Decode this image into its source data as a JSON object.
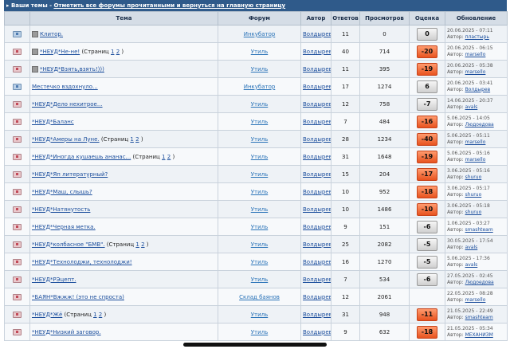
{
  "header": {
    "section": "Ваши темы",
    "sep": " - ",
    "mark_read_link": "Отметить все форумы прочитанными и вернуться на главную страницу"
  },
  "columns": {
    "topic": "Тема",
    "forum": "Форум",
    "author": "Автор",
    "replies": "Ответов",
    "views": "Просмотров",
    "rating": "Оценка",
    "updated": "Обновление"
  },
  "labels": {
    "by": "Автор:",
    "pages_prefix": "(Страниц",
    "pages_suffix": ")"
  },
  "rows": [
    {
      "icon": "read",
      "locked": true,
      "title": "Клитор.",
      "pages": [],
      "forum": "Инкубатор",
      "author": "Волдырев",
      "replies": "11",
      "views": "0",
      "rating": "0",
      "neg": false,
      "date": "20.06.2025 - 07:11",
      "last": "пластырь"
    },
    {
      "icon": "new",
      "locked": true,
      "title": "*НЕУД*Не-не!",
      "pages": [
        "1",
        "2"
      ],
      "forum": "Утиль",
      "author": "Волдырев",
      "replies": "40",
      "views": "714",
      "rating": "-20",
      "neg": true,
      "date": "20.06.2025 - 06:15",
      "last": "marsello"
    },
    {
      "icon": "new",
      "locked": true,
      "title": "*НЕУД*Взять,взять!)))",
      "pages": [],
      "forum": "Утиль",
      "author": "Волдырев",
      "replies": "11",
      "views": "395",
      "rating": "-19",
      "neg": true,
      "date": "20.06.2025 - 05:38",
      "last": "marsello"
    },
    {
      "icon": "read",
      "locked": false,
      "title": "Местечко вздохнуло...",
      "pages": [],
      "forum": "Инкубатор",
      "author": "Волдырев",
      "replies": "17",
      "views": "1274",
      "rating": "6",
      "neg": false,
      "date": "20.06.2025 - 03:41",
      "last": "Волдырев"
    },
    {
      "icon": "new",
      "locked": false,
      "title": "*НЕУД*Дело нехитрое...",
      "pages": [],
      "forum": "Утиль",
      "author": "Волдырев",
      "replies": "12",
      "views": "758",
      "rating": "-7",
      "neg": false,
      "date": "14.06.2025 - 20:37",
      "last": "avals"
    },
    {
      "icon": "new",
      "locked": false,
      "title": "*НЕУД*Баланс",
      "pages": [],
      "forum": "Утиль",
      "author": "Волдырев",
      "replies": "7",
      "views": "484",
      "rating": "-16",
      "neg": true,
      "date": "5.06.2025 - 14:05",
      "last": "Людоедова"
    },
    {
      "icon": "new",
      "locked": false,
      "title": "*НЕУД*Амеры на Луне.",
      "pages": [
        "1",
        "2"
      ],
      "forum": "Утиль",
      "author": "Волдырев",
      "replies": "28",
      "views": "1234",
      "rating": "-40",
      "neg": true,
      "date": "5.06.2025 - 05:11",
      "last": "marsello"
    },
    {
      "icon": "new",
      "locked": false,
      "title": "*НЕУД*Иногда кушаешь ананас...",
      "pages": [
        "1",
        "2"
      ],
      "forum": "Утиль",
      "author": "Волдырев",
      "replies": "31",
      "views": "1648",
      "rating": "-19",
      "neg": true,
      "date": "5.06.2025 - 05:16",
      "last": "marsello"
    },
    {
      "icon": "new",
      "locked": false,
      "title": "*НЕУД*Яп литературный?",
      "pages": [],
      "forum": "Утиль",
      "author": "Волдырев",
      "replies": "15",
      "views": "204",
      "rating": "-17",
      "neg": true,
      "date": "3.06.2025 - 05:16",
      "last": "shuruo"
    },
    {
      "icon": "new",
      "locked": false,
      "title": "*НЕУД*Маш, слышь?",
      "pages": [],
      "forum": "Утиль",
      "author": "Волдырев",
      "replies": "10",
      "views": "952",
      "rating": "-18",
      "neg": true,
      "date": "3.06.2025 - 05:17",
      "last": "shuruo"
    },
    {
      "icon": "new",
      "locked": false,
      "title": "*НЕУД*Натянутость",
      "pages": [],
      "forum": "Утиль",
      "author": "Волдырев",
      "replies": "10",
      "views": "1486",
      "rating": "-10",
      "neg": true,
      "date": "3.06.2025 - 05:18",
      "last": "shuruo"
    },
    {
      "icon": "new",
      "locked": false,
      "title": "*НЕУД*Черная метка.",
      "pages": [],
      "forum": "Утиль",
      "author": "Волдырев",
      "replies": "9",
      "views": "151",
      "rating": "-6",
      "neg": false,
      "date": "1.06.2025 - 03:27",
      "last": "smashteam"
    },
    {
      "icon": "new",
      "locked": false,
      "title": "*НЕУД*колбасное \"БМВ\".",
      "pages": [
        "1",
        "2"
      ],
      "forum": "Утиль",
      "author": "Волдырев",
      "replies": "25",
      "views": "2082",
      "rating": "-5",
      "neg": false,
      "date": "30.05.2025 - 17:54",
      "last": "avals"
    },
    {
      "icon": "new",
      "locked": false,
      "title": "*НЕУД*Технолоджи, технолоджи!",
      "pages": [],
      "forum": "Утиль",
      "author": "Волдырев",
      "replies": "16",
      "views": "1270",
      "rating": "-5",
      "neg": false,
      "date": "5.06.2025 - 17:36",
      "last": "avals"
    },
    {
      "icon": "new",
      "locked": false,
      "title": "*НЕУД*РЭцепт.",
      "pages": [],
      "forum": "Утиль",
      "author": "Волдырев",
      "replies": "7",
      "views": "534",
      "rating": "-6",
      "neg": false,
      "date": "27.05.2025 - 02:45",
      "last": "Людоедова"
    },
    {
      "icon": "new",
      "locked": false,
      "title": "*БАЯН*Вжжж! (это не спроста)",
      "pages": [],
      "forum": "Склад баянов",
      "author": "Волдырев",
      "replies": "12",
      "views": "2061",
      "rating": "",
      "neg": false,
      "date": "22.05.2025 - 08:28",
      "last": "marsello"
    },
    {
      "icon": "new",
      "locked": false,
      "title": "*НЕУД*Жё",
      "pages": [
        "1",
        "2"
      ],
      "forum": "Утиль",
      "author": "Волдырев",
      "replies": "31",
      "views": "948",
      "rating": "-11",
      "neg": true,
      "date": "21.05.2025 - 22:49",
      "last": "smashteam"
    },
    {
      "icon": "new",
      "locked": false,
      "title": "*НЕУД*Низкий заговор.",
      "pages": [],
      "forum": "Утиль",
      "author": "Волдырев",
      "replies": "9",
      "views": "632",
      "rating": "-18",
      "neg": true,
      "date": "21.05.2025 - 05:34",
      "last": "МЕХАНИЗМ"
    }
  ]
}
